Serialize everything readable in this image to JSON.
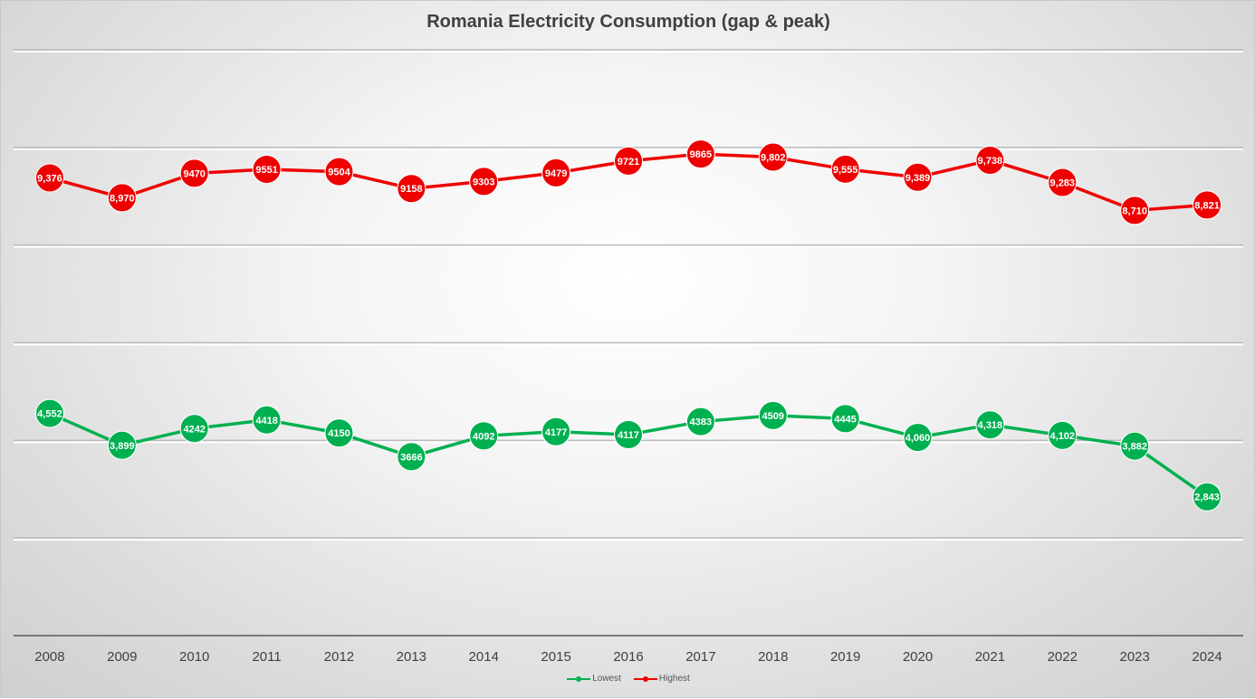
{
  "chart_data": {
    "type": "line",
    "title": "Romania Electricity Consumption (gap & peak)",
    "x": [
      "2008",
      "2009",
      "2010",
      "2011",
      "2012",
      "2013",
      "2014",
      "2015",
      "2016",
      "2017",
      "2018",
      "2019",
      "2020",
      "2021",
      "2022",
      "2023",
      "2024"
    ],
    "series": [
      {
        "name": "Highest",
        "color": "#ee0000",
        "values": [
          9376,
          8970,
          9470,
          9551,
          9504,
          9158,
          9303,
          9479,
          9721,
          9865,
          9802,
          9555,
          9389,
          9738,
          9283,
          8710,
          8821
        ],
        "labels": [
          "9,376",
          "8,970",
          "9470",
          "9551",
          "9504",
          "9158",
          "9303",
          "9479",
          "9721",
          "9865",
          "9,802",
          "9,555",
          "9,389",
          "9,738",
          "9,283",
          "8,710",
          "8,821"
        ]
      },
      {
        "name": "Lowest",
        "color": "#00b050",
        "values": [
          4552,
          3899,
          4242,
          4418,
          4150,
          3666,
          4092,
          4177,
          4117,
          4383,
          4509,
          4445,
          4060,
          4318,
          4102,
          3882,
          2843
        ],
        "labels": [
          "4,552",
          "3,899",
          "4242",
          "4418",
          "4150",
          "3666",
          "4092",
          "4177",
          "4117",
          "4383",
          "4509",
          "4445",
          "4,060",
          "4,318",
          "4,102",
          "3,882",
          "2,843"
        ]
      }
    ],
    "ylim": [
      0,
      12000
    ],
    "legend_position": "bottom",
    "legend_order": [
      "Lowest",
      "Highest"
    ],
    "grid": true,
    "xlabel": "",
    "ylabel": ""
  }
}
